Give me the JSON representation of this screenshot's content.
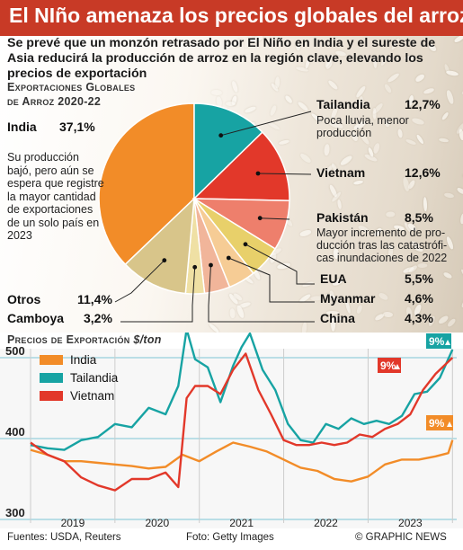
{
  "title": "El NIño amenaza los precios globales del arroz",
  "subtitle": "Se prevé  que un monzón retrasado por El Niño en India y el sureste de Asia reducirá la producción de arroz en la región clave, elevando los precios de exportación",
  "pie_heading_line1": "Exportaciones Globales",
  "pie_heading_line2": "de Arroz 2020-22",
  "india_note": "Su producción bajó, pero aún se espera que registre la mayor cantidad de exportaciones de un solo país en 2023",
  "tailandia_note_1": "Poca lluvia, menor",
  "tailandia_note_2": "producción",
  "pakistan_note_1": "Mayor incremento de pro-",
  "pakistan_note_2": "ducción tras las catastrófi-",
  "pakistan_note_3": "cas inundaciones de 2022",
  "line_heading": "Precios de Exportación",
  "line_unit": "$/ton",
  "footer": {
    "source": "Fuentes: USDA, Reuters",
    "photo": "Foto: Getty Images",
    "credit": "© GRAPHIC NEWS"
  },
  "colors": {
    "india": "#f28c28",
    "tailandia": "#17a3a3",
    "vietnam": "#e2382a",
    "pakistan": "#ee7f6c",
    "eua": "#e8d06a",
    "myanmar": "#f6cc95",
    "china": "#f1b59a",
    "camboya": "#efe0a4",
    "otros": "#d8c58a",
    "title_bar": "#c83a26"
  },
  "chart_data": [
    {
      "type": "pie",
      "title": "Exportaciones Globales de Arroz 2020-22",
      "slices": [
        {
          "name": "India",
          "label": "India",
          "value": 37.1,
          "pct": "37,1%"
        },
        {
          "name": "Tailandia",
          "label": "Tailandia",
          "value": 12.7,
          "pct": "12,7%"
        },
        {
          "name": "Vietnam",
          "label": "Vietnam",
          "value": 12.6,
          "pct": "12,6%"
        },
        {
          "name": "Pakistán",
          "label": "Pakistán",
          "value": 8.5,
          "pct": "8,5%"
        },
        {
          "name": "EUA",
          "label": "EUA",
          "value": 5.5,
          "pct": "5,5%"
        },
        {
          "name": "Myanmar",
          "label": "Myanmar",
          "value": 4.6,
          "pct": "4,6%"
        },
        {
          "name": "China",
          "label": "China",
          "value": 4.3,
          "pct": "4,3%"
        },
        {
          "name": "Camboya",
          "label": "Camboya",
          "value": 3.2,
          "pct": "3,2%"
        },
        {
          "name": "Otros",
          "label": "Otros",
          "value": 11.4,
          "pct": "11,4%"
        }
      ]
    },
    {
      "type": "line",
      "title": "Precios de Exportación",
      "ylabel": "$/ton",
      "ylim": [
        300,
        500
      ],
      "yticks": [
        300,
        400,
        500
      ],
      "xlim": [
        2018.5,
        2023.55
      ],
      "xticks": [
        "2019",
        "2020",
        "2021",
        "2022",
        "2023"
      ],
      "series": [
        {
          "name": "India",
          "end_label": "9%",
          "x": [
            2018.5,
            2018.7,
            2018.9,
            2019.1,
            2019.3,
            2019.5,
            2019.7,
            2019.9,
            2020.1,
            2020.3,
            2020.5,
            2020.7,
            2020.9,
            2021.1,
            2021.3,
            2021.5,
            2021.7,
            2021.9,
            2022.1,
            2022.3,
            2022.5,
            2022.7,
            2022.9,
            2023.1,
            2023.3,
            2023.45,
            2023.5
          ],
          "values": [
            386,
            380,
            372,
            372,
            370,
            368,
            366,
            363,
            365,
            380,
            372,
            384,
            395,
            390,
            384,
            374,
            364,
            360,
            350,
            347,
            353,
            368,
            374,
            374,
            378,
            382,
            398
          ]
        },
        {
          "name": "Tailandia",
          "end_label": "9%",
          "x": [
            2018.5,
            2018.7,
            2018.9,
            2019.1,
            2019.3,
            2019.5,
            2019.7,
            2019.9,
            2020.1,
            2020.25,
            2020.35,
            2020.45,
            2020.6,
            2020.75,
            2020.9,
            2021.0,
            2021.1,
            2021.25,
            2021.4,
            2021.55,
            2021.7,
            2021.85,
            2022.0,
            2022.15,
            2022.3,
            2022.45,
            2022.6,
            2022.75,
            2022.9,
            2023.05,
            2023.2,
            2023.35,
            2023.5
          ],
          "values": [
            392,
            388,
            386,
            398,
            402,
            418,
            414,
            438,
            430,
            465,
            535,
            498,
            488,
            445,
            490,
            513,
            530,
            485,
            460,
            418,
            398,
            395,
            418,
            412,
            425,
            418,
            422,
            418,
            428,
            455,
            458,
            475,
            510
          ]
        },
        {
          "name": "Vietnam",
          "end_label": "9%",
          "x": [
            2018.5,
            2018.7,
            2018.9,
            2019.1,
            2019.3,
            2019.5,
            2019.7,
            2019.9,
            2020.1,
            2020.25,
            2020.35,
            2020.45,
            2020.6,
            2020.75,
            2020.9,
            2021.05,
            2021.2,
            2021.35,
            2021.5,
            2021.65,
            2021.8,
            2021.95,
            2022.1,
            2022.25,
            2022.4,
            2022.55,
            2022.7,
            2022.85,
            2023.0,
            2023.15,
            2023.3,
            2023.5
          ],
          "values": [
            395,
            380,
            372,
            352,
            342,
            336,
            350,
            350,
            358,
            340,
            450,
            465,
            465,
            455,
            485,
            505,
            460,
            430,
            398,
            392,
            392,
            395,
            392,
            395,
            405,
            402,
            412,
            418,
            430,
            460,
            480,
            500
          ]
        }
      ]
    }
  ]
}
